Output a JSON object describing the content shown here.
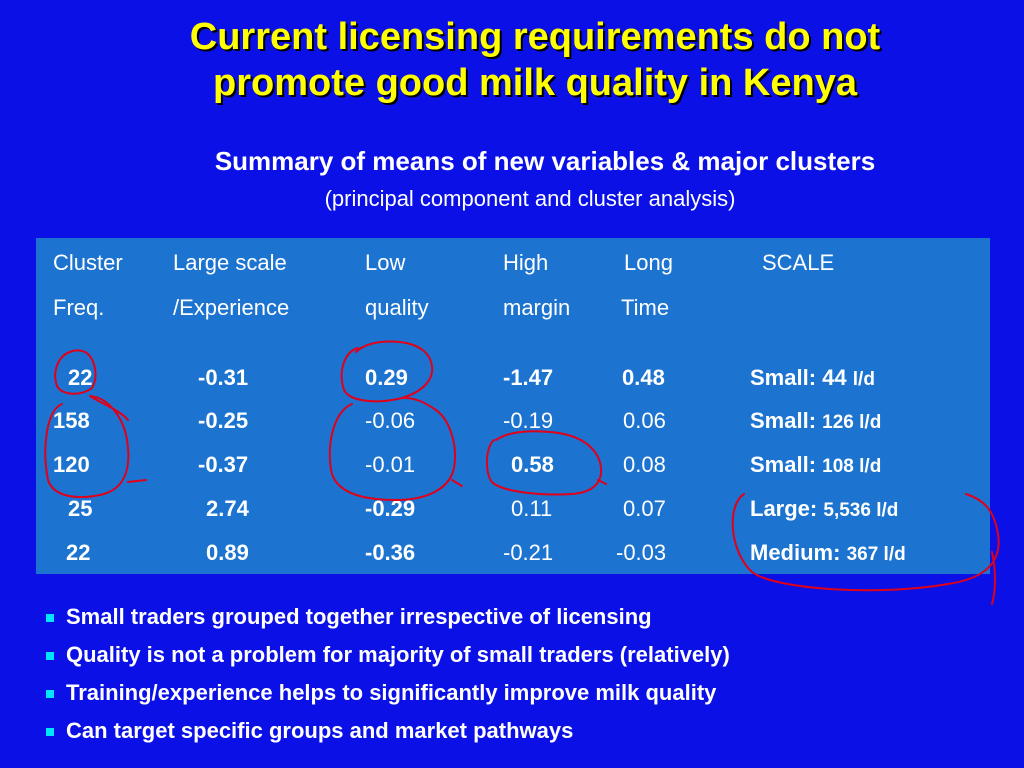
{
  "title_line1": "Current licensing requirements do not",
  "title_line2": "promote good milk quality in Kenya",
  "subtitle": "Summary of means of new variables & major clusters",
  "subnote": "(principal component and cluster analysis)",
  "headers": {
    "cluster": "Cluster",
    "freq": "Freq.",
    "large_scale": "Large scale",
    "experience": "/Experience",
    "low": "Low",
    "quality": "quality",
    "high": "High",
    "margin": "margin",
    "long": "Long",
    "time": "Time",
    "scale": "SCALE"
  },
  "rows": [
    {
      "freq": "22",
      "large": "-0.31",
      "low": "0.29",
      "high": "-1.47",
      "long": "0.48",
      "scale_label": "Small:",
      "scale_value": "44",
      "scale_unit": "l/d"
    },
    {
      "freq": "158",
      "large": "-0.25",
      "low": "-0.06",
      "high": "-0.19",
      "long": "0.06",
      "scale_label": "Small:",
      "scale_value": "126 l/d",
      "scale_unit": ""
    },
    {
      "freq": "120",
      "large": "-0.37",
      "low": "-0.01",
      "high": "0.58",
      "long": "0.08",
      "scale_label": "Small:",
      "scale_value": "108 l/d",
      "scale_unit": ""
    },
    {
      "freq": "25",
      "large": "2.74",
      "low": "-0.29",
      "high": "0.11",
      "long": "0.07",
      "scale_label": "Large:",
      "scale_value": "5,536 l/d",
      "scale_unit": ""
    },
    {
      "freq": "22",
      "large": "0.89",
      "low": "-0.36",
      "high": "-0.21",
      "long": "-0.03",
      "scale_label": "Medium:",
      "scale_value": "367 l/d",
      "scale_unit": ""
    }
  ],
  "bullets": [
    "Small traders grouped together irrespective of licensing",
    "Quality is not a problem for majority of small traders (relatively)",
    "Training/experience helps to significantly improve milk quality",
    "Can target specific groups and market pathways"
  ],
  "colors": {
    "background": "#0a10e6",
    "title": "#ffff00",
    "table": "#1c74d0",
    "annotation": "#e0001a",
    "bullet": "#00e5ff"
  }
}
